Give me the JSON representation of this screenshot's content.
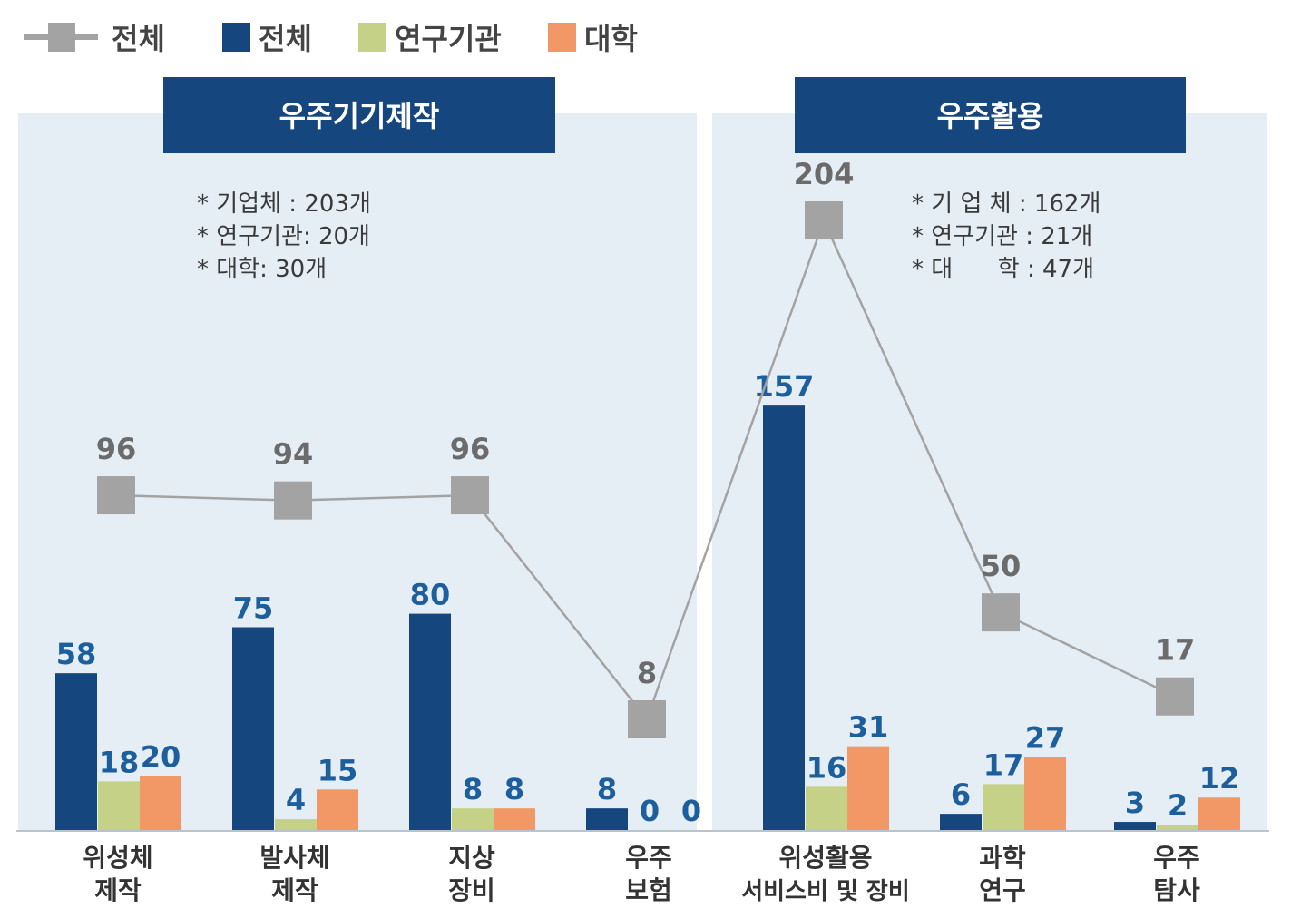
{
  "colors": {
    "total_line": "#a3a3a3",
    "total_bar": "#16467e",
    "institutes": "#c5d187",
    "universities": "#f29866",
    "panel_bg": "#e6eef5",
    "header_bg": "#16467e",
    "bar_label": "#1c5f9c",
    "line_label": "#6b6b6b"
  },
  "chart_data": {
    "type": "bar+line",
    "legend": [
      "전체",
      "전체",
      "연구기관",
      "대학"
    ],
    "legend_placement": "top-left",
    "panels": [
      {
        "title": "우주기기제작",
        "notes": [
          "* 기업체 : 203개",
          "* 연구기관: 20개",
          "* 대학: 30개"
        ],
        "categories": [
          0,
          1,
          2,
          3
        ]
      },
      {
        "title": "우주활용",
        "notes": [
          "* 기 업 체 : 162개",
          "* 연구기관 : 21개",
          "* 대      학 : 47개"
        ],
        "categories": [
          4,
          5,
          6
        ]
      }
    ],
    "categories": [
      [
        "위성체",
        "제작"
      ],
      [
        "발사체",
        "제작"
      ],
      [
        "지상",
        "장비"
      ],
      [
        "우주",
        "보험"
      ],
      [
        "위성활용",
        "서비스비 및 장비"
      ],
      [
        "과학",
        "연구"
      ],
      [
        "우주",
        "탐사"
      ]
    ],
    "series": [
      {
        "name": "전체",
        "kind": "line",
        "values": [
          96,
          94,
          96,
          8,
          204,
          50,
          17
        ]
      },
      {
        "name": "전체",
        "kind": "bar",
        "values": [
          58,
          75,
          80,
          8,
          157,
          6,
          3
        ]
      },
      {
        "name": "연구기관",
        "kind": "bar",
        "values": [
          18,
          4,
          8,
          0,
          16,
          17,
          2
        ]
      },
      {
        "name": "대학",
        "kind": "bar",
        "values": [
          20,
          15,
          8,
          0,
          31,
          27,
          12
        ]
      }
    ]
  }
}
